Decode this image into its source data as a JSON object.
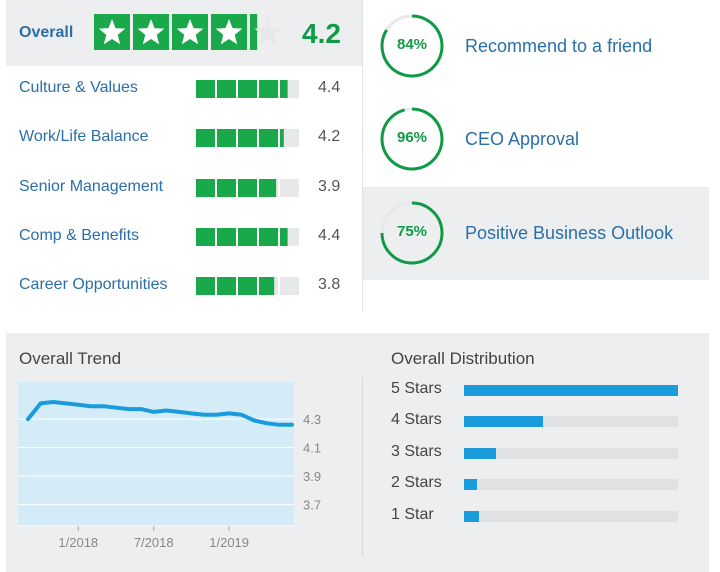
{
  "overall": {
    "label": "Overall",
    "rating": 4.2,
    "rating_text": "4.2",
    "max_stars": 5
  },
  "categories": [
    {
      "label": "Culture & Values",
      "value": 4.4,
      "value_text": "4.4"
    },
    {
      "label": "Work/Life Balance",
      "value": 4.2,
      "value_text": "4.2"
    },
    {
      "label": "Senior Management",
      "value": 3.9,
      "value_text": "3.9"
    },
    {
      "label": "Comp & Benefits",
      "value": 4.4,
      "value_text": "4.4"
    },
    {
      "label": "Career Opportunities",
      "value": 3.8,
      "value_text": "3.8"
    }
  ],
  "percentages": [
    {
      "value": 84,
      "text": "84%",
      "label": "Recommend to a friend"
    },
    {
      "value": 96,
      "text": "96%",
      "label": "CEO Approval"
    },
    {
      "value": 75,
      "text": "75%",
      "label": "Positive Business Outlook"
    }
  ],
  "trend": {
    "title": "Overall Trend",
    "x_labels": [
      "1/2018",
      "7/2018",
      "1/2019"
    ],
    "y_labels": [
      "4.3",
      "4.1",
      "3.9",
      "3.7"
    ]
  },
  "distribution": {
    "title": "Overall Distribution",
    "rows": [
      {
        "label": "5 Stars",
        "share": 1.0
      },
      {
        "label": "4 Stars",
        "share": 0.37
      },
      {
        "label": "3 Stars",
        "share": 0.15
      },
      {
        "label": "2 Stars",
        "share": 0.06
      },
      {
        "label": "1 Star",
        "share": 0.07
      }
    ]
  },
  "colors": {
    "green": "#0f9b45",
    "green_bar": "#19a84a",
    "empty": "#e6e8ea",
    "link_blue": "#2a6fa8",
    "trend_line": "#1a9bdb",
    "trend_fill": "#d3ecf8",
    "dist_fill": "#1a9bdb"
  },
  "chart_data": {
    "type": "area",
    "title": "Overall Trend",
    "x": [
      "9/2017",
      "10/2017",
      "11/2017",
      "12/2017",
      "1/2018",
      "2/2018",
      "3/2018",
      "4/2018",
      "5/2018",
      "6/2018",
      "7/2018",
      "8/2018",
      "9/2018",
      "10/2018",
      "11/2018",
      "12/2018",
      "1/2019",
      "2/2019",
      "3/2019",
      "4/2019",
      "5/2019",
      "6/2019"
    ],
    "series": [
      {
        "values": [
          4.3,
          4.41,
          4.42,
          4.41,
          4.4,
          4.39,
          4.39,
          4.38,
          4.37,
          4.37,
          4.35,
          4.36,
          4.35,
          4.34,
          4.33,
          4.33,
          4.34,
          4.33,
          4.29,
          4.27,
          4.26,
          4.26
        ]
      }
    ],
    "x_ticks": [
      "1/2018",
      "7/2018",
      "1/2019"
    ],
    "y_ticks": [
      4.3,
      4.1,
      3.9,
      3.7
    ],
    "ylim": [
      3.55,
      4.56
    ],
    "grid": true
  }
}
